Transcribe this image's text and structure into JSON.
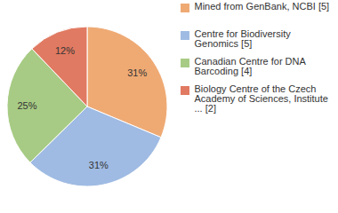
{
  "chart_data": {
    "type": "pie",
    "categories": [
      "Mined from GenBank, NCBI [5]",
      "Centre for Biodiversity Genomics [5]",
      "Canadian Centre for DNA Barcoding [4]",
      "Biology Centre of the Czech Academy of Sciences, Institute ... [2]"
    ],
    "values": [
      31,
      31,
      25,
      12
    ],
    "value_labels": [
      "31%",
      "31%",
      "25%",
      "12%"
    ],
    "colors": [
      "#efaa74",
      "#9fbbe3",
      "#a7cb84",
      "#e17a62"
    ],
    "data_labels": true,
    "legend": "right"
  }
}
